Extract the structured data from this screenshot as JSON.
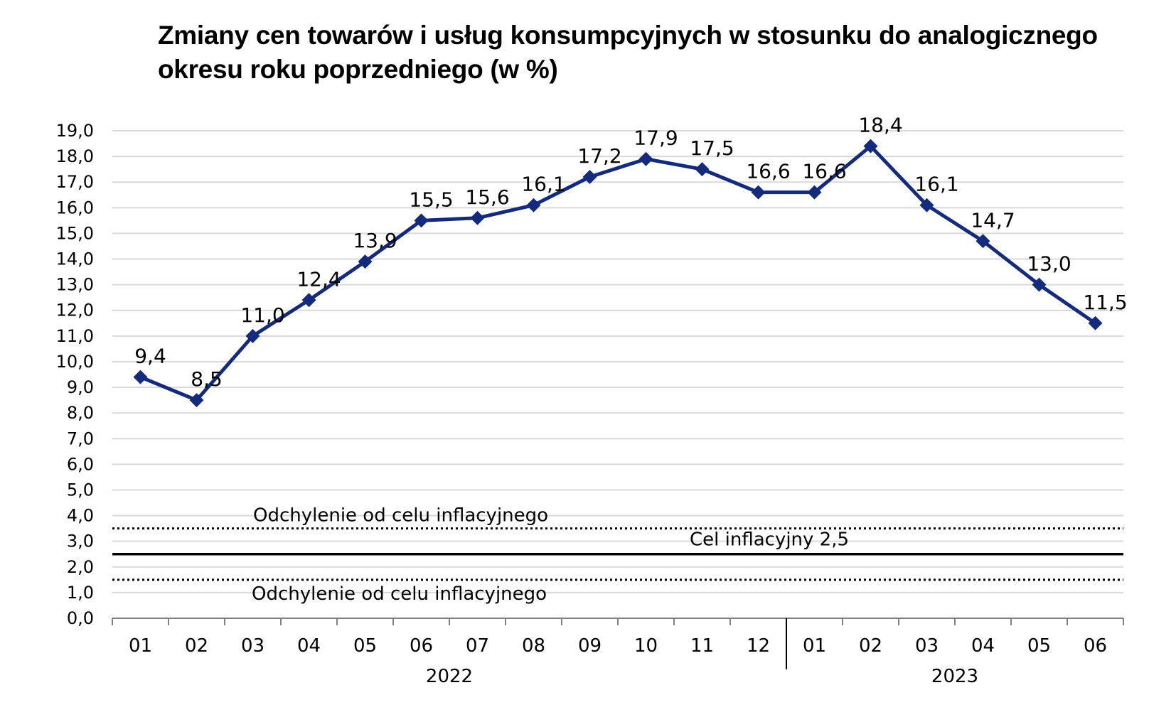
{
  "title_lines": [
    "Zmiany cen towarów i usług konsumpcyjnych w stosunku do analogicznego",
    "okresu roku poprzedniego (w %)"
  ],
  "chart_data": {
    "type": "line",
    "title": "Zmiany cen towarów i usług konsumpcyjnych w stosunku do analogicznego okresu roku poprzedniego (w %)",
    "categories": [
      "01",
      "02",
      "03",
      "04",
      "05",
      "06",
      "07",
      "08",
      "09",
      "10",
      "11",
      "12",
      "01",
      "02",
      "03",
      "04",
      "05",
      "06"
    ],
    "year_groups": [
      {
        "label": "2022",
        "months": 12
      },
      {
        "label": "2023",
        "months": 6
      }
    ],
    "series": [
      {
        "values": [
          9.4,
          8.5,
          11.0,
          12.4,
          13.9,
          15.5,
          15.6,
          16.1,
          17.2,
          17.9,
          17.5,
          16.6,
          16.6,
          18.4,
          16.1,
          14.7,
          13.0,
          11.5
        ],
        "labels": [
          "9,4",
          "8,5",
          "11,0",
          "12,4",
          "13,9",
          "15,5",
          "15,6",
          "16,1",
          "17,2",
          "17,9",
          "17,5",
          "16,6",
          "16,6",
          "18,4",
          "16,1",
          "14,7",
          "13,0",
          "11,5"
        ],
        "color": "#142a7c",
        "marker": "diamond"
      }
    ],
    "ylim": [
      0,
      19
    ],
    "ystep": 1,
    "ytick_labels": [
      "0,0",
      "1,0",
      "2,0",
      "3,0",
      "4,0",
      "5,0",
      "6,0",
      "7,0",
      "8,0",
      "9,0",
      "10,0",
      "11,0",
      "12,0",
      "13,0",
      "14,0",
      "15,0",
      "16,0",
      "17,0",
      "18,0",
      "19,0"
    ],
    "grid": true,
    "grid_color": "#d9d9d9",
    "reference_lines": [
      {
        "value": 3.5,
        "style": "dotted",
        "label": "Odchylenie od celu inflacyjnego",
        "color": "#000000"
      },
      {
        "value": 2.5,
        "style": "solid",
        "label": "Cel inflacyjny 2,5",
        "color": "#000000"
      },
      {
        "value": 1.5,
        "style": "dotted",
        "label": "Odchylenie od celu inflacyjnego",
        "color": "#000000"
      }
    ]
  }
}
